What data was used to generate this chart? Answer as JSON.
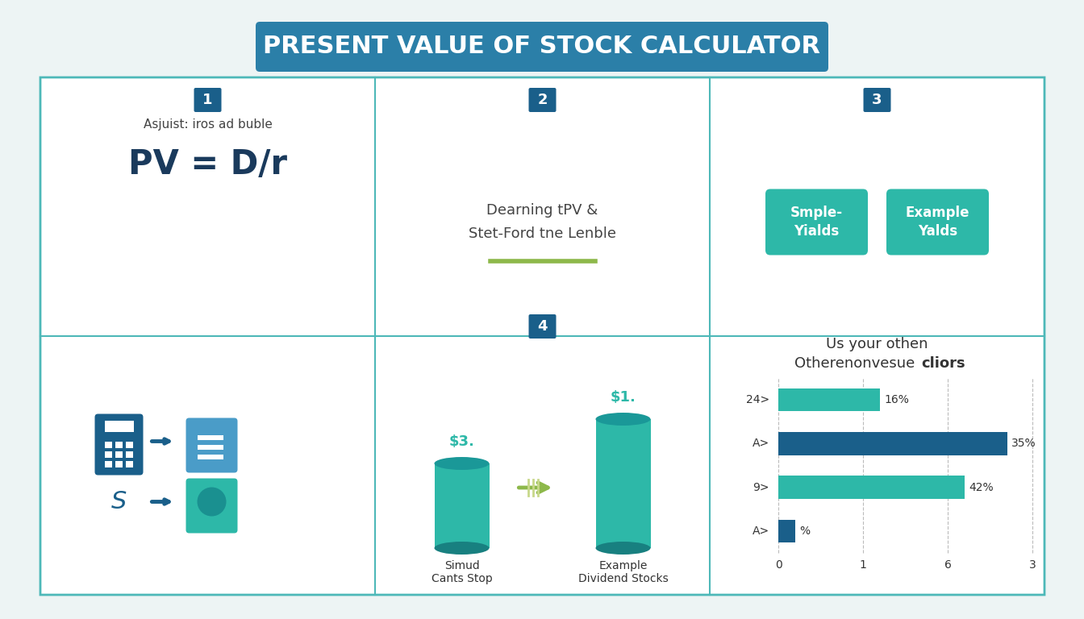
{
  "title": "PRESENT VALUE OF STOCK CALCULATOR",
  "bg_color": "#edf4f4",
  "title_bg_color": "#2b7fa8",
  "title_text_color": "#ffffff",
  "grid_border_color": "#4db8b8",
  "teal_color": "#2db8a8",
  "dark_blue_color": "#1a5f8a",
  "step1_label": "Asjuist: iros ad buble",
  "step1_formula": "PV = D/r",
  "step2_line1": "Dearning tPV &",
  "step2_line2": "Stet-Ford tne Lenble",
  "step3_btn1": "Smple-\nYialds",
  "step3_btn2": "Example\nYalds",
  "step4_bar1_label": "Simud\nCants Stop",
  "step4_bar1_value": "$3.",
  "step4_bar2_label": "Example\nDividend Stocks",
  "step4_bar2_value": "$1.",
  "chart_title_line1": "Us your othen",
  "chart_title_line2": "Otherenonvesue",
  "chart_title_bold": "cliors",
  "chart_categories": [
    "24>",
    "A>",
    "9>",
    "A>"
  ],
  "chart_values": [
    1.2,
    2.7,
    2.2,
    0.2
  ],
  "chart_percentages": [
    "16%",
    "35%",
    "42%",
    "%"
  ],
  "chart_colors": [
    "#2db8a8",
    "#1a5f8a",
    "#2db8a8",
    "#1a5f8a"
  ],
  "chart_xticks": [
    "0",
    "1",
    "6",
    "3"
  ]
}
